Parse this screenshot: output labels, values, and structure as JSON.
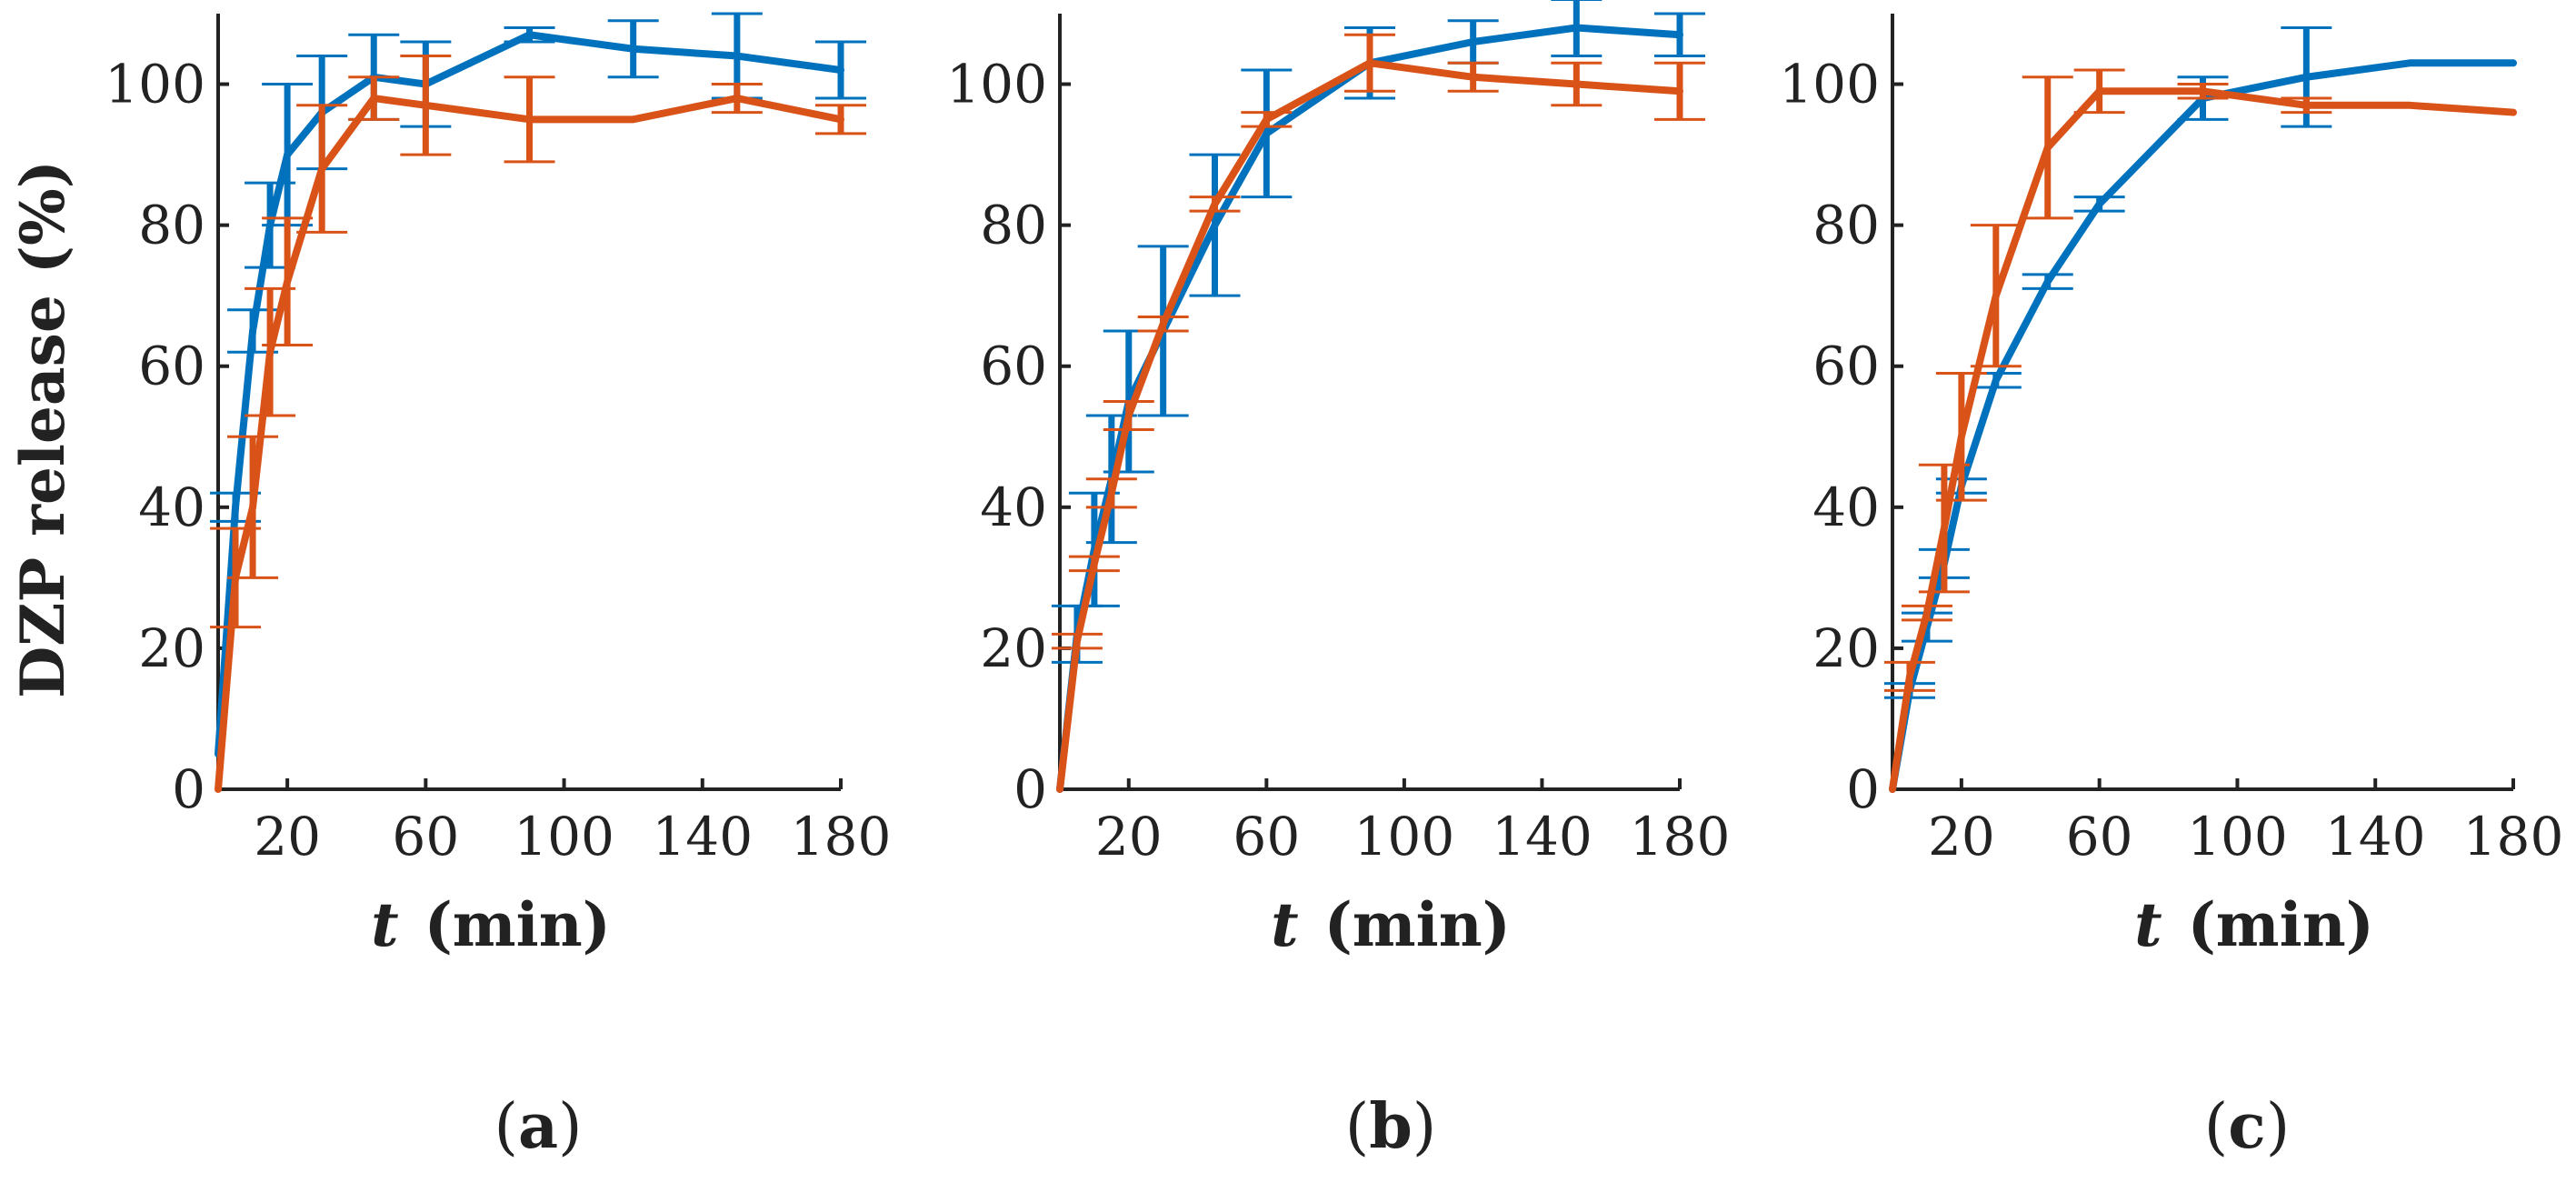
{
  "chart_data": [
    {
      "type": "line",
      "panel_label": "a",
      "xlabel_symbol": "t",
      "xlabel_unit": "(min)",
      "ylabel": "DZP release (%)",
      "xlim": [
        0,
        180
      ],
      "ylim": [
        0,
        110
      ],
      "x_ticks": [
        20,
        60,
        100,
        140,
        180
      ],
      "y_ticks": [
        0,
        20,
        40,
        60,
        80,
        100
      ],
      "series": [
        {
          "name": "blue",
          "color": "#0072BD",
          "x": [
            0,
            5,
            10,
            15,
            20,
            30,
            45,
            60,
            90,
            120,
            150,
            180
          ],
          "y": [
            5,
            40,
            65,
            80,
            90,
            96,
            101,
            100,
            107,
            105,
            104,
            102
          ],
          "err": [
            0,
            2,
            3,
            6,
            10,
            8,
            6,
            6,
            1,
            4,
            6,
            4
          ]
        },
        {
          "name": "orange",
          "color": "#D95319",
          "x": [
            0,
            5,
            10,
            15,
            20,
            30,
            45,
            60,
            90,
            120,
            150,
            180
          ],
          "y": [
            0,
            30,
            40,
            62,
            72,
            88,
            98,
            97,
            95,
            95,
            98,
            95
          ],
          "err": [
            0,
            7,
            10,
            9,
            9,
            9,
            3,
            7,
            6,
            0,
            2,
            2
          ]
        }
      ]
    },
    {
      "type": "line",
      "panel_label": "b",
      "xlabel_symbol": "t",
      "xlabel_unit": "(min)",
      "ylabel": "",
      "xlim": [
        0,
        180
      ],
      "ylim": [
        0,
        110
      ],
      "x_ticks": [
        20,
        60,
        100,
        140,
        180
      ],
      "y_ticks": [
        0,
        20,
        40,
        60,
        80,
        100
      ],
      "series": [
        {
          "name": "blue",
          "color": "#0072BD",
          "x": [
            0,
            5,
            10,
            15,
            20,
            30,
            45,
            60,
            90,
            120,
            150,
            180
          ],
          "y": [
            0,
            22,
            34,
            44,
            55,
            65,
            80,
            93,
            103,
            106,
            108,
            107
          ],
          "err": [
            0,
            4,
            8,
            9,
            10,
            12,
            10,
            9,
            5,
            3,
            4,
            3
          ]
        },
        {
          "name": "orange",
          "color": "#D95319",
          "x": [
            0,
            5,
            10,
            15,
            20,
            30,
            45,
            60,
            90,
            120,
            150,
            180
          ],
          "y": [
            0,
            21,
            32,
            42,
            53,
            66,
            83,
            95,
            103,
            101,
            100,
            99
          ],
          "err": [
            0,
            1,
            1,
            2,
            2,
            1,
            1,
            1,
            4,
            2,
            3,
            4
          ]
        }
      ]
    },
    {
      "type": "line",
      "panel_label": "c",
      "xlabel_symbol": "t",
      "xlabel_unit": "(min)",
      "ylabel": "",
      "xlim": [
        0,
        180
      ],
      "ylim": [
        0,
        110
      ],
      "x_ticks": [
        20,
        60,
        100,
        140,
        180
      ],
      "y_ticks": [
        0,
        20,
        40,
        60,
        80,
        100
      ],
      "series": [
        {
          "name": "blue",
          "color": "#0072BD",
          "x": [
            0,
            5,
            10,
            15,
            20,
            30,
            45,
            60,
            90,
            120,
            150,
            180
          ],
          "y": [
            0,
            14,
            23,
            32,
            43,
            58,
            72,
            83,
            98,
            101,
            103,
            103
          ],
          "err": [
            0,
            1,
            2,
            2,
            1,
            1,
            1,
            1,
            3,
            7,
            0,
            0
          ]
        },
        {
          "name": "orange",
          "color": "#D95319",
          "x": [
            0,
            5,
            10,
            15,
            20,
            30,
            45,
            60,
            90,
            120,
            150,
            180
          ],
          "y": [
            0,
            16,
            25,
            37,
            50,
            70,
            91,
            99,
            99,
            97,
            97,
            96
          ],
          "err": [
            0,
            2,
            1,
            9,
            9,
            10,
            10,
            3,
            1,
            1,
            0,
            0
          ]
        }
      ]
    }
  ]
}
